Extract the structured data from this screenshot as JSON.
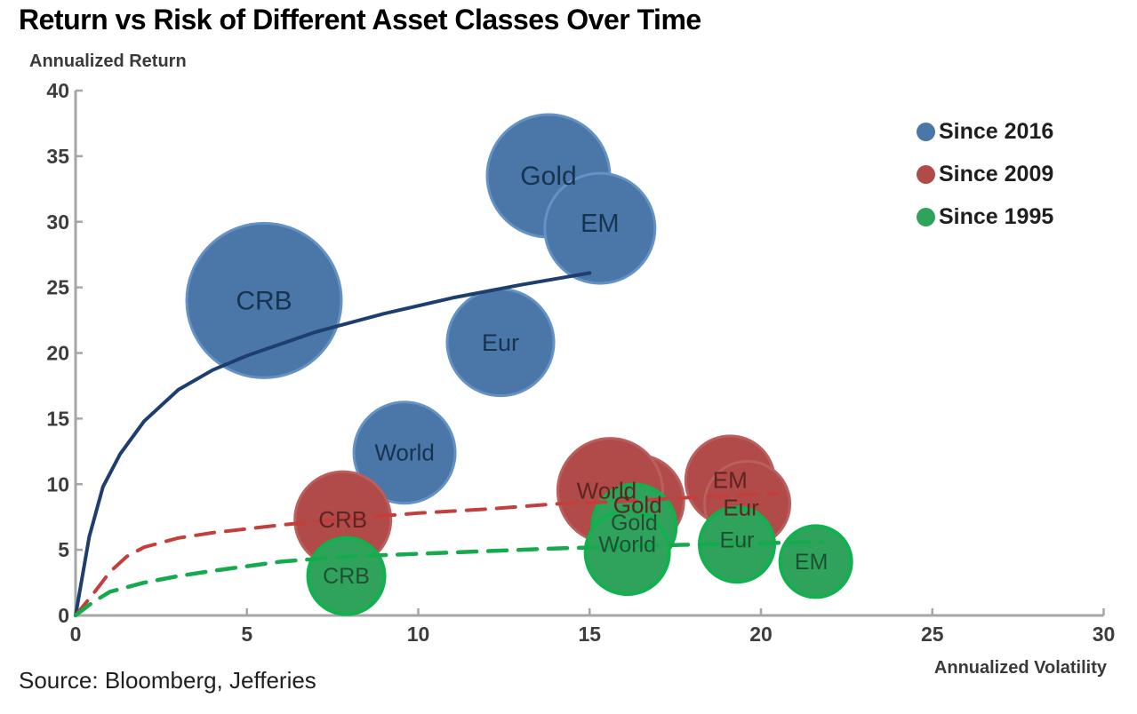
{
  "title": "Return vs Risk of Different Asset Classes Over Time",
  "source": "Source: Bloomberg, Jefferies",
  "y_axis_title": "Annualized Return",
  "x_axis_title": "Annualized Volatility",
  "colors": {
    "axis": "#a6a6a6",
    "tick_text": "#3d3d3d",
    "blue_fill": "#4a76a8",
    "red_fill": "#b04b49",
    "green_fill": "#2fa35c"
  },
  "legend": [
    {
      "label": "Since 2016",
      "color": "#4a76a8"
    },
    {
      "label": "Since 2009",
      "color": "#b04b49"
    },
    {
      "label": "Since 1995",
      "color": "#2fa35c"
    }
  ],
  "chart_data": {
    "type": "scatter",
    "title": "Return vs Risk of Different Asset Classes Over Time",
    "xlabel": "Annualized Volatility",
    "ylabel": "Annualized Return",
    "xlim": [
      0,
      30
    ],
    "ylim": [
      0,
      40
    ],
    "xticks": [
      0,
      5,
      10,
      15,
      20,
      25,
      30
    ],
    "yticks": [
      0,
      5,
      10,
      15,
      20,
      25,
      30,
      35,
      40
    ],
    "grid": false,
    "legend_position": "right",
    "series": [
      {
        "name": "Since 2016",
        "fill": "#4a76a8",
        "stroke": "#6492c4",
        "stroke_width": 3,
        "label_color": "#163450",
        "points": [
          {
            "label": "CRB",
            "x": 5.5,
            "y": 24.0,
            "r": 87,
            "fs": 30
          },
          {
            "label": "Gold",
            "x": 13.8,
            "y": 33.5,
            "r": 69,
            "fs": 30
          },
          {
            "label": "EM",
            "x": 15.3,
            "y": 29.5,
            "r": 62,
            "fs": 29,
            "dy": -6
          },
          {
            "label": "Eur",
            "x": 12.4,
            "y": 20.8,
            "r": 60,
            "fs": 27
          },
          {
            "label": "World",
            "x": 9.6,
            "y": 12.4,
            "r": 57,
            "fs": 26
          }
        ],
        "trend": {
          "style": "solid",
          "color": "#1e3f6d",
          "width": 4,
          "points": [
            [
              0,
              0
            ],
            [
              0.4,
              6.0
            ],
            [
              0.8,
              9.8
            ],
            [
              1.3,
              12.3
            ],
            [
              2,
              14.8
            ],
            [
              3,
              17.2
            ],
            [
              4,
              18.7
            ],
            [
              5,
              19.8
            ],
            [
              7,
              21.6
            ],
            [
              9,
              23.0
            ],
            [
              11,
              24.2
            ],
            [
              13,
              25.2
            ],
            [
              15,
              26.1
            ]
          ]
        }
      },
      {
        "name": "Since 2009",
        "fill": "#b04b49",
        "stroke": "#ba5f5d",
        "stroke_width": 3,
        "label_color": "#5f2321",
        "points": [
          {
            "label": "Gold",
            "x": 16.4,
            "y": 8.7,
            "r": 52,
            "fs": 26,
            "dy": 4
          },
          {
            "label": "World",
            "x": 15.6,
            "y": 9.5,
            "r": 59,
            "fs": 26,
            "dx": -4
          },
          {
            "label": "EM",
            "x": 19.1,
            "y": 10.3,
            "r": 50,
            "fs": 26
          },
          {
            "label": "Eur",
            "x": 19.6,
            "y": 8.5,
            "r": 48,
            "fs": 26,
            "dx": -7,
            "dy": 4
          },
          {
            "label": "CRB",
            "x": 7.8,
            "y": 7.3,
            "r": 54,
            "fs": 26
          }
        ],
        "trend": {
          "style": "dashed",
          "color": "#c23f3c",
          "width": 4,
          "points": [
            [
              0,
              0
            ],
            [
              0.5,
              1.6
            ],
            [
              1,
              3.3
            ],
            [
              1.5,
              4.5
            ],
            [
              2,
              5.2
            ],
            [
              3,
              5.9
            ],
            [
              4,
              6.3
            ],
            [
              6,
              6.9
            ],
            [
              8,
              7.4
            ],
            [
              10,
              7.8
            ],
            [
              12,
              8.1
            ],
            [
              14,
              8.5
            ],
            [
              16,
              8.7
            ],
            [
              18,
              9.0
            ],
            [
              20.5,
              9.3
            ]
          ]
        }
      },
      {
        "name": "Since 1995",
        "fill": "#2fa35c",
        "stroke": "#10b14e",
        "stroke_width": 4,
        "label_color": "#1f4f33",
        "points": [
          {
            "label": "Gold",
            "x": 16.3,
            "y": 6.8,
            "r": 47,
            "fs": 25,
            "dy": -4
          },
          {
            "label": "World",
            "x": 16.1,
            "y": 4.8,
            "r": 47,
            "fs": 25,
            "dy": -9
          },
          {
            "label": "CRB",
            "x": 7.9,
            "y": 3.0,
            "r": 43,
            "fs": 25
          },
          {
            "label": "Eur",
            "x": 19.3,
            "y": 5.4,
            "r": 42,
            "fs": 25,
            "dy": -5
          },
          {
            "label": "EM",
            "x": 21.6,
            "y": 4.1,
            "r": 40,
            "fs": 25,
            "dx": -5
          }
        ],
        "trend": {
          "style": "dashed",
          "color": "#15aa4d",
          "width": 4.5,
          "points": [
            [
              0,
              0
            ],
            [
              0.5,
              1.0
            ],
            [
              1,
              1.8
            ],
            [
              2,
              2.5
            ],
            [
              3,
              3.0
            ],
            [
              4,
              3.4
            ],
            [
              6,
              4.1
            ],
            [
              8,
              4.5
            ],
            [
              10,
              4.7
            ],
            [
              12,
              4.9
            ],
            [
              14,
              5.1
            ],
            [
              16,
              5.25
            ],
            [
              18,
              5.4
            ],
            [
              20,
              5.5
            ],
            [
              21.8,
              5.6
            ]
          ]
        }
      }
    ]
  }
}
